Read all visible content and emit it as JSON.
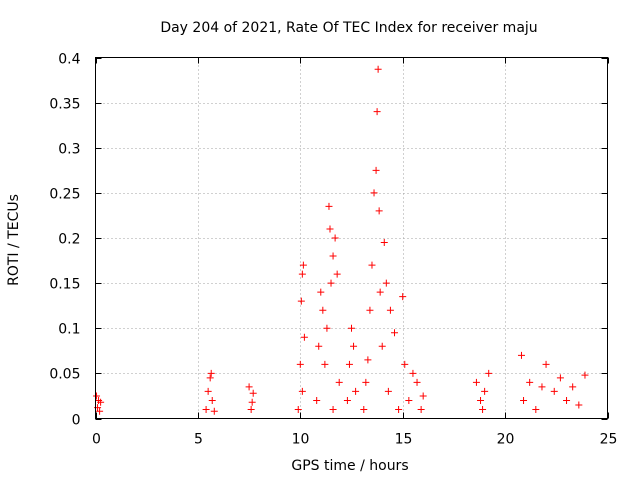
{
  "chart_data": {
    "type": "scatter",
    "title": "Day 204 of 2021, Rate Of TEC Index for receiver maju",
    "xlabel": "GPS time / hours",
    "ylabel": "ROTI / TECUs",
    "xlim": [
      0,
      25
    ],
    "ylim": [
      0,
      0.4
    ],
    "x_ticks": [
      0,
      5,
      10,
      15,
      20,
      25
    ],
    "x_tick_labels": [
      "0",
      "5",
      "10",
      "15",
      "20",
      "25"
    ],
    "y_ticks": [
      0,
      0.05,
      0.1,
      0.15,
      0.2,
      0.25,
      0.3,
      0.35,
      0.4
    ],
    "y_tick_labels": [
      "0",
      "0.05",
      "0.1",
      "0.15",
      "0.2",
      "0.25",
      "0.3",
      "0.35",
      "0.4"
    ],
    "grid": true,
    "marker": "+",
    "marker_color": "#ff0000",
    "series": [
      {
        "name": "ROTI",
        "points": [
          [
            0.05,
            0.025
          ],
          [
            0.1,
            0.012
          ],
          [
            0.15,
            0.02
          ],
          [
            0.2,
            0.008
          ],
          [
            0.25,
            0.018
          ],
          [
            5.4,
            0.01
          ],
          [
            5.5,
            0.03
          ],
          [
            5.6,
            0.045
          ],
          [
            5.7,
            0.02
          ],
          [
            5.8,
            0.008
          ],
          [
            5.65,
            0.05
          ],
          [
            7.5,
            0.035
          ],
          [
            7.6,
            0.01
          ],
          [
            7.7,
            0.028
          ],
          [
            7.65,
            0.018
          ],
          [
            9.9,
            0.01
          ],
          [
            10.0,
            0.06
          ],
          [
            10.05,
            0.13
          ],
          [
            10.1,
            0.16
          ],
          [
            10.15,
            0.17
          ],
          [
            10.2,
            0.09
          ],
          [
            10.1,
            0.03
          ],
          [
            10.8,
            0.02
          ],
          [
            10.9,
            0.08
          ],
          [
            11.0,
            0.14
          ],
          [
            11.1,
            0.12
          ],
          [
            11.2,
            0.06
          ],
          [
            11.3,
            0.1
          ],
          [
            11.4,
            0.235
          ],
          [
            11.45,
            0.21
          ],
          [
            11.5,
            0.15
          ],
          [
            11.6,
            0.18
          ],
          [
            11.7,
            0.2
          ],
          [
            11.8,
            0.16
          ],
          [
            11.9,
            0.04
          ],
          [
            11.6,
            0.01
          ],
          [
            12.3,
            0.02
          ],
          [
            12.4,
            0.06
          ],
          [
            12.5,
            0.1
          ],
          [
            12.6,
            0.08
          ],
          [
            12.7,
            0.03
          ],
          [
            13.1,
            0.01
          ],
          [
            13.2,
            0.04
          ],
          [
            13.3,
            0.065
          ],
          [
            13.4,
            0.12
          ],
          [
            13.5,
            0.17
          ],
          [
            13.6,
            0.25
          ],
          [
            13.7,
            0.275
          ],
          [
            13.75,
            0.34
          ],
          [
            13.8,
            0.387
          ],
          [
            13.85,
            0.23
          ],
          [
            13.9,
            0.14
          ],
          [
            14.0,
            0.08
          ],
          [
            14.1,
            0.195
          ],
          [
            14.2,
            0.15
          ],
          [
            14.3,
            0.03
          ],
          [
            14.4,
            0.12
          ],
          [
            14.6,
            0.095
          ],
          [
            14.8,
            0.01
          ],
          [
            15.0,
            0.135
          ],
          [
            15.1,
            0.06
          ],
          [
            15.3,
            0.02
          ],
          [
            15.5,
            0.05
          ],
          [
            15.7,
            0.04
          ],
          [
            15.9,
            0.01
          ],
          [
            16.0,
            0.025
          ],
          [
            18.6,
            0.04
          ],
          [
            18.8,
            0.02
          ],
          [
            18.9,
            0.01
          ],
          [
            19.0,
            0.03
          ],
          [
            19.2,
            0.05
          ],
          [
            20.8,
            0.07
          ],
          [
            20.9,
            0.02
          ],
          [
            21.2,
            0.04
          ],
          [
            21.5,
            0.01
          ],
          [
            21.8,
            0.035
          ],
          [
            22.0,
            0.06
          ],
          [
            22.4,
            0.03
          ],
          [
            22.7,
            0.045
          ],
          [
            23.0,
            0.02
          ],
          [
            23.3,
            0.035
          ],
          [
            23.6,
            0.015
          ],
          [
            23.9,
            0.048
          ]
        ]
      }
    ]
  }
}
